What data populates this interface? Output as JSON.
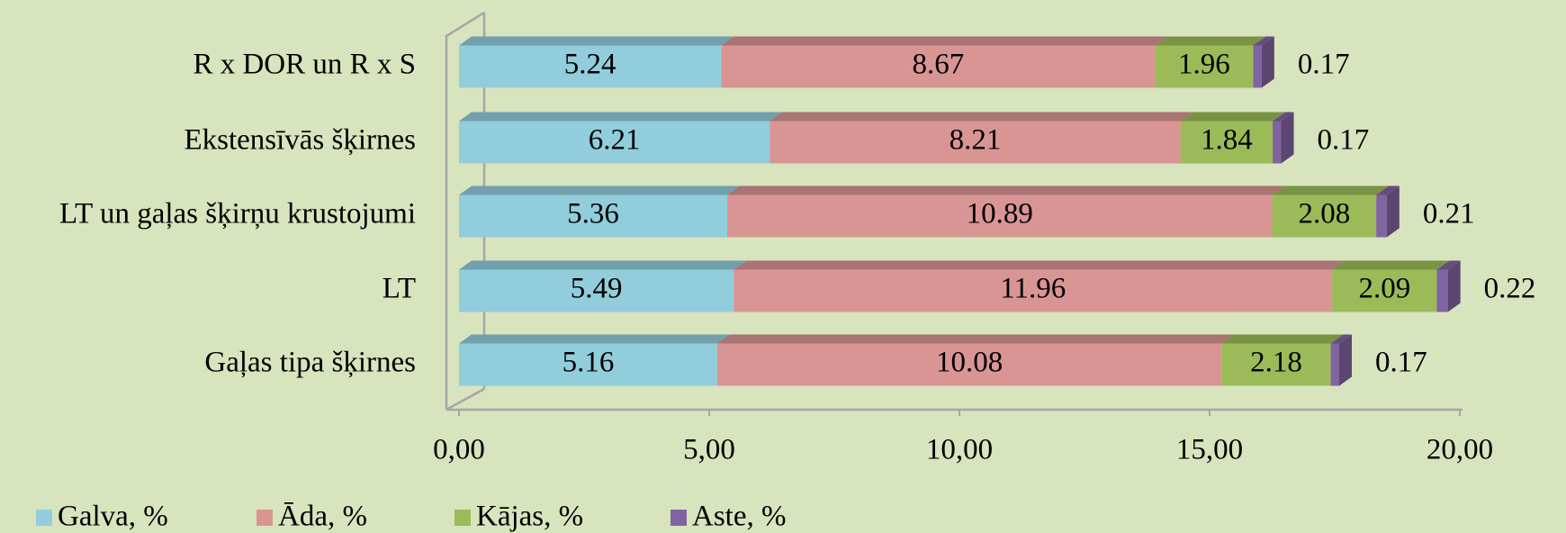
{
  "chart_data": {
    "type": "bar",
    "orientation": "horizontal",
    "stacked": true,
    "categories": [
      "R x DOR un R x S",
      "Ekstensīvās šķirnes",
      "LT un gaļas šķirņu krustojumi",
      "LT",
      "Gaļas tipa šķirnes"
    ],
    "series": [
      {
        "name": "Galva, %",
        "color": "#92cddc",
        "values": [
          5.24,
          6.21,
          5.36,
          5.49,
          5.16
        ]
      },
      {
        "name": "Āda, %",
        "color": "#d99594",
        "values": [
          8.67,
          8.21,
          10.89,
          11.96,
          10.08
        ]
      },
      {
        "name": "Kājas, %",
        "color": "#9bbb59",
        "values": [
          1.96,
          1.84,
          2.08,
          2.09,
          2.18
        ]
      },
      {
        "name": "Aste, %",
        "color": "#8064a2",
        "values": [
          0.17,
          0.17,
          0.21,
          0.22,
          0.17
        ]
      }
    ],
    "xlim": [
      0,
      20
    ],
    "xticks": [
      {
        "value": 0,
        "label": "0,00"
      },
      {
        "value": 5,
        "label": "5,00"
      },
      {
        "value": 10,
        "label": "10,00"
      },
      {
        "value": 15,
        "label": "15,00"
      },
      {
        "value": 20,
        "label": "20,00"
      }
    ],
    "legend": "bottom-left"
  }
}
